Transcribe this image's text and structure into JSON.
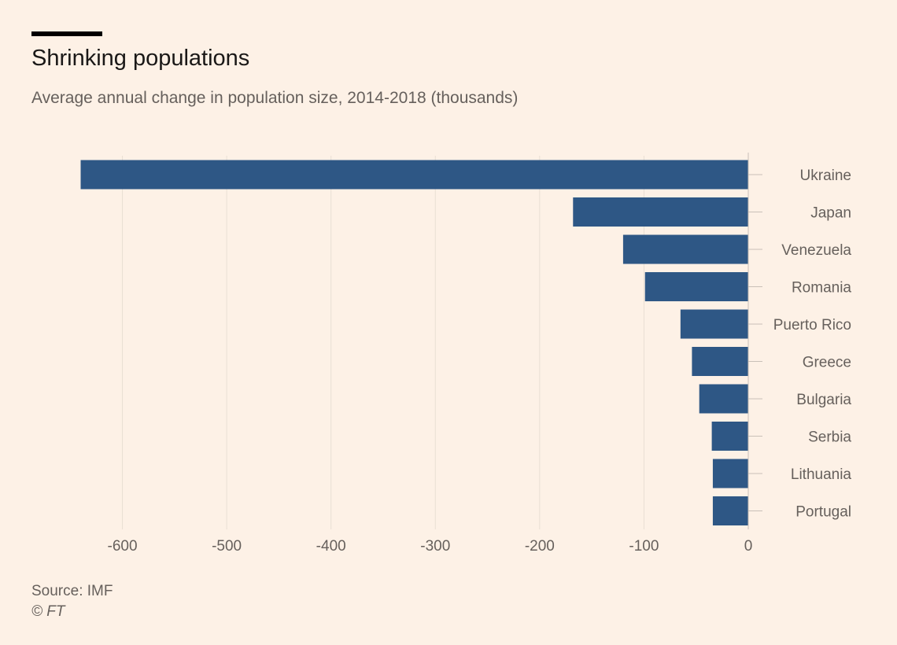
{
  "chart_data": {
    "type": "bar",
    "orientation": "horizontal",
    "title": "Shrinking populations",
    "subtitle": "Average annual change in population size, 2014-2018 (thousands)",
    "categories": [
      "Ukraine",
      "Japan",
      "Venezuela",
      "Romania",
      "Puerto Rico",
      "Greece",
      "Bulgaria",
      "Serbia",
      "Lithuania",
      "Portugal"
    ],
    "values": [
      -640,
      -168,
      -120,
      -99,
      -65,
      -54,
      -47,
      -35,
      -34,
      -34
    ],
    "xlim": [
      -660,
      0
    ],
    "xticks": [
      -600,
      -500,
      -400,
      -300,
      -200,
      -100,
      0
    ],
    "tick_labels": [
      "-600",
      "-500",
      "-400",
      "-300",
      "-200",
      "-100",
      "0"
    ],
    "grid": true,
    "category_label_position": "right",
    "colors": {
      "bar": "#2e5785",
      "grid": "#e9dfd4",
      "axis": "#c9c0b8",
      "background": "#fdf1e6"
    }
  },
  "source": "Source: IMF",
  "credit": "© FT"
}
